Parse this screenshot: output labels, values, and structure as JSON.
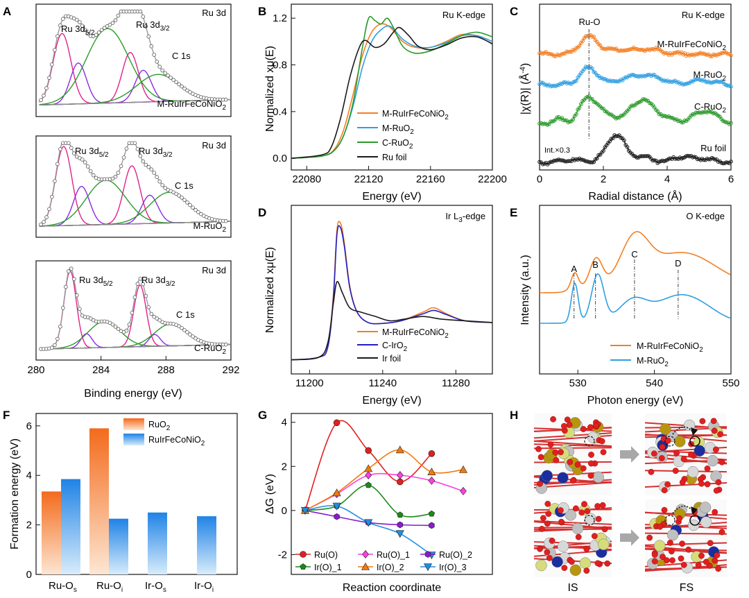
{
  "colors": {
    "orange": "#f47e20",
    "blue": "#2f9ee0",
    "green": "#2a9a2a",
    "black": "#1a1a1a",
    "magenta": "#e0218a",
    "purple": "#8a2be2",
    "navy": "#2020c0",
    "red": "#e02020",
    "gray": "#8c8c8c",
    "envelope": "#9a9a9a",
    "pink": "#ff3fe0",
    "violet": "#8a1ad0",
    "dark_green": "#1b8a1b",
    "dark_orange": "#f07a10",
    "sky": "#1e8ee0"
  },
  "panels": {
    "A": {
      "letter": "A",
      "xlabel": "Binding energy (eV)",
      "xlim": [
        280,
        292
      ],
      "xticks": [
        "280",
        "284",
        "288",
        "292"
      ],
      "subplots": [
        {
          "title": "Ru 3d",
          "sample": "M-RuIrFeCoNiO",
          "sample_sub": "2",
          "lbl1": "Ru 3d",
          "lbl1_sub": "5/2",
          "lbl2": "Ru 3d",
          "lbl2_sub": "3/2",
          "lbl3": "C 1s"
        },
        {
          "title": "Ru 3d",
          "sample": "M-RuO",
          "sample_sub": "2",
          "lbl1": "Ru 3d",
          "lbl1_sub": "5/2",
          "lbl2": "Ru 3d",
          "lbl2_sub": "3/2",
          "lbl3": "C 1s"
        },
        {
          "title": "Ru 3d",
          "sample": "C-RuO",
          "sample_sub": "2",
          "lbl1": "Ru 3d",
          "lbl1_sub": "5/2",
          "lbl2": "Ru 3d",
          "lbl2_sub": "3/2",
          "lbl3": "C 1s"
        }
      ]
    },
    "B": {
      "letter": "B",
      "title": "Ru K-edge",
      "xlabel": "Energy (eV)",
      "ylabel": "Normalized xμ(E)",
      "xticks": [
        "22080",
        "22120",
        "22160",
        "22200"
      ],
      "yticks": [
        "0.0",
        "0.4",
        "0.8",
        "1.2"
      ],
      "legend": [
        {
          "name": "M-RuIrFeCoNiO",
          "sub": "2",
          "color": "#f47e20"
        },
        {
          "name": "M-RuO",
          "sub": "2",
          "color": "#2f9ee0"
        },
        {
          "name": "C-RuO",
          "sub": "2",
          "color": "#2a9a2a"
        },
        {
          "name": "Ru foil",
          "sub": "",
          "color": "#1a1a1a"
        }
      ]
    },
    "C": {
      "letter": "C",
      "title": "Ru K-edge",
      "xlabel": "Radial distance (Å)",
      "ylabel": "|χ(R)| (Å",
      "ylabel_sup": "-4",
      "ylabel_end": ")",
      "xticks": [
        "0",
        "2",
        "4",
        "6"
      ],
      "peak_label": "Ru-O",
      "int_note": "Int.×0.3",
      "labels": [
        {
          "name": "M-RuIrFeCoNiO",
          "sub": "2"
        },
        {
          "name": "M-RuO",
          "sub": "2"
        },
        {
          "name": "C-RuO",
          "sub": "2"
        },
        {
          "name": "Ru foil",
          "sub": ""
        }
      ]
    },
    "D": {
      "letter": "D",
      "title": "Ir L",
      "title_sub": "3",
      "title_end": "-edge",
      "xlabel": "Energy (eV)",
      "ylabel": "Normalized xμ(E)",
      "xticks": [
        "11200",
        "11240",
        "11280"
      ],
      "legend": [
        {
          "name": "M-RuIrFeCoNiO",
          "sub": "2",
          "color": "#f47e20"
        },
        {
          "name": "C-IrO",
          "sub": "2",
          "color": "#2020c0"
        },
        {
          "name": "Ir foil",
          "sub": "",
          "color": "#1a1a1a"
        }
      ]
    },
    "E": {
      "letter": "E",
      "title": "O K-edge",
      "xlabel": "Photon energy (eV)",
      "ylabel": "Intensity (a.u.)",
      "xticks": [
        "530",
        "540",
        "550"
      ],
      "peaks": [
        "A",
        "B",
        "C",
        "D"
      ],
      "legend": [
        {
          "name": "M-RuIrFeCoNiO",
          "sub": "2",
          "color": "#f47e20"
        },
        {
          "name": "M-RuO",
          "sub": "2",
          "color": "#2f9ee0"
        }
      ]
    },
    "F": {
      "letter": "F",
      "ylabel": "Formation energy (eV)",
      "yticks": [
        "0",
        "2",
        "4",
        "6"
      ],
      "categories": [
        {
          "main": "Ru-O",
          "sub": "s"
        },
        {
          "main": "Ru-O",
          "sub": "i"
        },
        {
          "main": "Ir-O",
          "sub": "s"
        },
        {
          "main": "Ir-O",
          "sub": "i"
        }
      ],
      "legend": [
        {
          "name": "RuO",
          "sub": "2",
          "color": "#f47e20"
        },
        {
          "name": "RuIrFeCoNiO",
          "sub": "2",
          "color": "#2f9ee0"
        }
      ]
    },
    "G": {
      "letter": "G",
      "xlabel": "Reaction coordinate",
      "ylabel": "ΔG (eV)",
      "yticks": [
        "-2",
        "0",
        "2",
        "4"
      ],
      "legend": [
        "Ru(O)",
        "Ru(O)_1",
        "Ru(O)_2",
        "Ir(O)_1",
        "Ir(O)_2",
        "Ir(O)_3"
      ]
    },
    "H": {
      "letter": "H",
      "is_label": "IS",
      "fs_label": "FS"
    }
  },
  "chart_data": [
    {
      "panel": "A",
      "type": "line",
      "xlim": [
        280,
        292
      ],
      "components_eV": {
        "Ru 3d5/2": [
          281.6,
          282.6
        ],
        "Ru 3d3/2": [
          285.8,
          286.8
        ],
        "C 1s": 284.3
      },
      "series": [
        {
          "name": "M-RuIrFeCoNiO2"
        },
        {
          "name": "M-RuO2"
        },
        {
          "name": "C-RuO2"
        }
      ]
    },
    {
      "panel": "B",
      "type": "line",
      "xlim": [
        22070,
        22200
      ],
      "ylim": [
        -0.1,
        1.32
      ],
      "series": [
        {
          "name": "M-RuIrFeCoNiO2",
          "x": [
            22070,
            22090,
            22098,
            22104,
            22110,
            22116,
            22122,
            22128,
            22134,
            22142,
            22150,
            22160,
            22170,
            22180,
            22190,
            22200
          ],
          "y": [
            0,
            0.02,
            0.08,
            0.25,
            0.55,
            0.88,
            1.08,
            1.15,
            1.12,
            1.0,
            0.95,
            0.95,
            1.0,
            1.06,
            1.05,
            1.0
          ]
        },
        {
          "name": "M-RuO2",
          "x": [
            22070,
            22090,
            22098,
            22104,
            22110,
            22116,
            22122,
            22128,
            22134,
            22142,
            22150,
            22160,
            22170,
            22180,
            22190,
            22200
          ],
          "y": [
            0,
            0.02,
            0.07,
            0.2,
            0.45,
            0.78,
            1.0,
            1.1,
            1.13,
            1.02,
            0.96,
            0.95,
            0.99,
            1.05,
            1.05,
            1.0
          ]
        },
        {
          "name": "C-RuO2",
          "x": [
            22070,
            22090,
            22098,
            22104,
            22110,
            22116,
            22120,
            22124,
            22128,
            22132,
            22136,
            22142,
            22150,
            22160,
            22170,
            22180,
            22190,
            22200
          ],
          "y": [
            0,
            0.02,
            0.07,
            0.2,
            0.48,
            0.95,
            1.2,
            1.18,
            1.15,
            1.2,
            1.12,
            0.96,
            0.9,
            0.92,
            0.98,
            1.05,
            1.08,
            1.04
          ]
        },
        {
          "name": "Ru foil",
          "x": [
            22070,
            22090,
            22096,
            22102,
            22108,
            22114,
            22118,
            22124,
            22130,
            22136,
            22140,
            22146,
            22152,
            22160,
            22170,
            22180,
            22190,
            22200
          ],
          "y": [
            0,
            0.03,
            0.1,
            0.35,
            0.7,
            0.95,
            1.01,
            0.95,
            0.98,
            1.08,
            1.12,
            1.05,
            0.96,
            0.93,
            0.97,
            1.03,
            1.04,
            0.98
          ]
        }
      ]
    },
    {
      "panel": "C",
      "type": "line",
      "xlim": [
        0,
        6
      ],
      "ru_o_peak_A": 1.55,
      "ru_foil_peak_A": 2.4,
      "series": [
        {
          "name": "M-RuIrFeCoNiO2"
        },
        {
          "name": "M-RuO2"
        },
        {
          "name": "C-RuO2"
        },
        {
          "name": "Ru foil"
        }
      ]
    },
    {
      "panel": "D",
      "type": "line",
      "xlim": [
        11190,
        11300
      ],
      "series": [
        {
          "name": "M-RuIrFeCoNiO2",
          "x": [
            11190,
            11205,
            11210,
            11213,
            11215,
            11217,
            11219,
            11222,
            11226,
            11232,
            11240,
            11250,
            11262,
            11268,
            11275,
            11285,
            11300
          ],
          "y": [
            0.05,
            0.08,
            0.2,
            0.8,
            1.55,
            1.62,
            1.4,
            0.9,
            0.6,
            0.48,
            0.47,
            0.5,
            0.6,
            0.65,
            0.58,
            0.5,
            0.48
          ]
        },
        {
          "name": "C-IrO2",
          "x": [
            11190,
            11205,
            11210,
            11213,
            11215,
            11217,
            11219,
            11222,
            11226,
            11232,
            11240,
            11250,
            11262,
            11268,
            11275,
            11285,
            11300
          ],
          "y": [
            0.05,
            0.08,
            0.2,
            0.75,
            1.5,
            1.57,
            1.36,
            0.88,
            0.6,
            0.48,
            0.47,
            0.5,
            0.58,
            0.62,
            0.57,
            0.5,
            0.48
          ]
        },
        {
          "name": "Ir foil",
          "x": [
            11190,
            11205,
            11210,
            11213,
            11215,
            11218,
            11222,
            11228,
            11236,
            11244,
            11252,
            11262,
            11272,
            11285,
            11300
          ],
          "y": [
            0.05,
            0.08,
            0.25,
            0.7,
            0.95,
            0.82,
            0.65,
            0.6,
            0.55,
            0.5,
            0.52,
            0.55,
            0.52,
            0.5,
            0.48
          ]
        }
      ]
    },
    {
      "panel": "E",
      "type": "line",
      "xlim": [
        525,
        550
      ],
      "peak_positions_eV": [
        529.5,
        532.3,
        537.4,
        543.1
      ],
      "series": [
        {
          "name": "M-RuIrFeCoNiO2"
        },
        {
          "name": "M-RuO2"
        }
      ]
    },
    {
      "panel": "F",
      "type": "bar",
      "categories": [
        "Ru-Os",
        "Ru-Oi",
        "Ir-Os",
        "Ir-Oi"
      ],
      "ylim": [
        0,
        6.5
      ],
      "series": [
        {
          "name": "RuO2",
          "values": [
            3.35,
            5.9,
            null,
            null
          ]
        },
        {
          "name": "RuIrFeCoNiO2",
          "values": [
            3.85,
            2.25,
            2.5,
            2.35
          ]
        }
      ]
    },
    {
      "panel": "G",
      "type": "line",
      "ylim": [
        -2.9,
        4.4
      ],
      "series": [
        {
          "name": "Ru(O)",
          "points": [
            [
              0,
              0
            ],
            [
              1,
              3.98
            ],
            [
              2,
              2.72
            ],
            [
              3,
              1.3
            ],
            [
              4,
              2.58
            ]
          ]
        },
        {
          "name": "Ru(O)_1",
          "points": [
            [
              0,
              0
            ],
            [
              1,
              0.75
            ],
            [
              2,
              1.6
            ],
            [
              3,
              1.6
            ],
            [
              4,
              1.35
            ],
            [
              5,
              0.88
            ]
          ]
        },
        {
          "name": "Ru(O)_2",
          "points": [
            [
              0,
              0
            ],
            [
              1,
              -0.28
            ],
            [
              2,
              -0.55
            ],
            [
              3,
              -0.65
            ],
            [
              4,
              -0.68
            ]
          ]
        },
        {
          "name": "Ir(O)_1",
          "points": [
            [
              0,
              0
            ],
            [
              1,
              0.2
            ],
            [
              2,
              1.15
            ],
            [
              3,
              -0.2
            ],
            [
              4,
              -0.15
            ]
          ]
        },
        {
          "name": "Ir(O)_2",
          "points": [
            [
              0,
              0
            ],
            [
              1,
              0.8
            ],
            [
              2,
              1.9
            ],
            [
              3,
              2.75
            ],
            [
              4,
              1.75
            ],
            [
              5,
              1.85
            ]
          ]
        },
        {
          "name": "Ir(O)_3",
          "points": [
            [
              0,
              0
            ],
            [
              1,
              0.2
            ],
            [
              2,
              -0.55
            ],
            [
              3,
              -1.05
            ],
            [
              4,
              -2.02
            ]
          ]
        }
      ]
    }
  ]
}
